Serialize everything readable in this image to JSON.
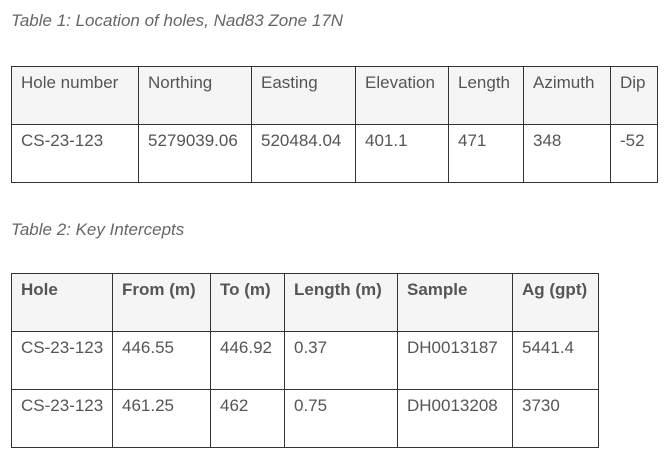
{
  "table1": {
    "caption": "Table 1: Location of holes, Nad83 Zone 17N",
    "header": [
      "Hole number",
      "Northing",
      "Easting",
      "Elevation",
      "Length",
      "Azimuth",
      "Dip"
    ],
    "rows": [
      [
        "CS-23-123",
        "5279039.06",
        "520484.04",
        "401.1",
        "471",
        "348",
        "-52"
      ]
    ]
  },
  "table2": {
    "caption": "Table 2: Key Intercepts",
    "header": [
      "Hole",
      "From (m)",
      "To (m)",
      "Length (m)",
      "Sample",
      "Ag (gpt)"
    ],
    "rows": [
      [
        "CS-23-123",
        "446.55",
        "446.92",
        "0.37",
        "DH0013187",
        "5441.4"
      ],
      [
        "CS-23-123",
        "461.25",
        "462",
        "0.75",
        "DH0013208",
        "3730"
      ]
    ]
  }
}
